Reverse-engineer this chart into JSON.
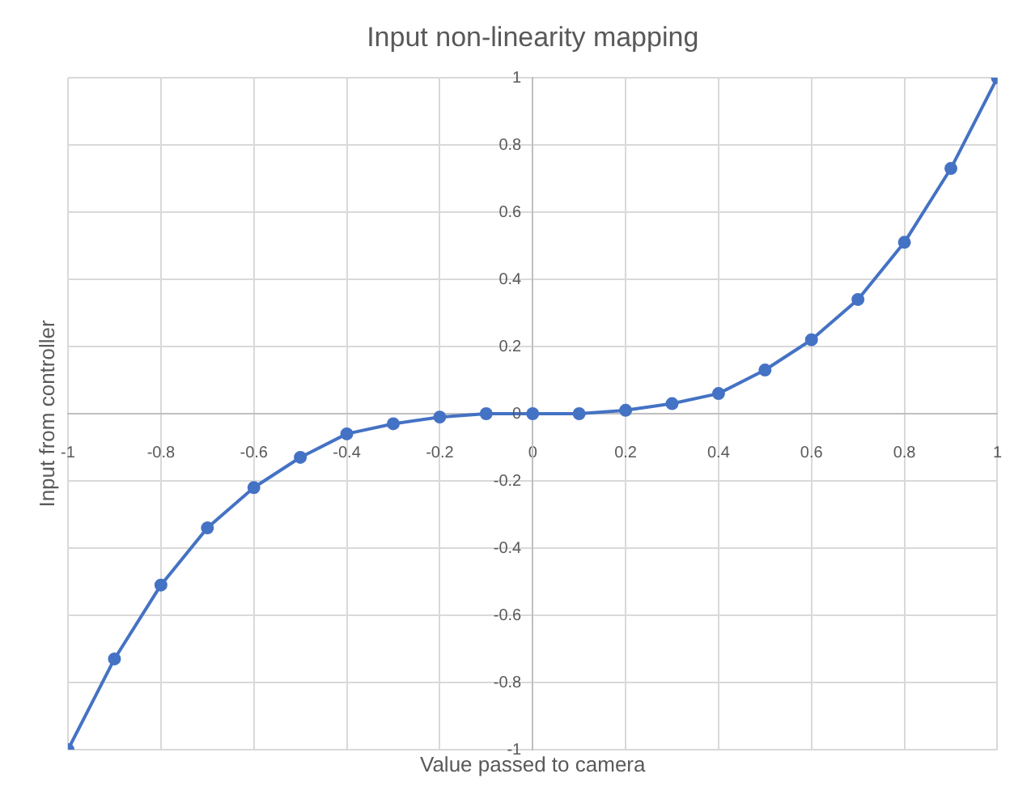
{
  "chart_data": {
    "type": "line",
    "title": "Input non-linearity mapping",
    "xlabel": "Value passed to camera",
    "ylabel": "Input from controller",
    "series": [
      {
        "color": "#4472c4",
        "x": [
          -1,
          -0.9,
          -0.8,
          -0.7,
          -0.6,
          -0.5,
          -0.4,
          -0.3,
          -0.2,
          -0.1,
          0,
          0.1,
          0.2,
          0.3,
          0.4,
          0.5,
          0.6,
          0.7,
          0.8,
          0.9,
          1
        ],
        "values": [
          -1,
          -0.73,
          -0.51,
          -0.34,
          -0.22,
          -0.13,
          -0.06,
          -0.03,
          -0.01,
          0,
          0,
          0,
          0.01,
          0.03,
          0.06,
          0.13,
          0.22,
          0.34,
          0.51,
          0.73,
          1
        ]
      }
    ],
    "xlim": [
      -1,
      1
    ],
    "xticks": [
      -1,
      -0.8,
      -0.6,
      -0.4,
      -0.2,
      0,
      0.2,
      0.4,
      0.6,
      0.8,
      1
    ],
    "ylim": [
      -1,
      1
    ],
    "yticks": [
      -1,
      -0.8,
      -0.6,
      -0.4,
      -0.2,
      0,
      0.2,
      0.4,
      0.6,
      0.8,
      1
    ],
    "grid": true,
    "legend": false,
    "marker": "circle",
    "line_style": "solid"
  }
}
